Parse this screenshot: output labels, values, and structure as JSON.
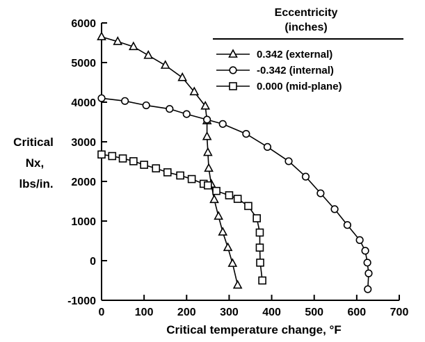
{
  "chart_data": {
    "type": "line",
    "xlabel": "Critical temperature change, °F",
    "ylabel_lines": [
      "Critical",
      "Nx,",
      "lbs/in."
    ],
    "xlim": [
      0,
      700
    ],
    "ylim": [
      -1000,
      6000
    ],
    "x_ticks": [
      0,
      100,
      200,
      300,
      400,
      500,
      600,
      700
    ],
    "y_ticks": [
      -1000,
      0,
      1000,
      2000,
      3000,
      4000,
      5000,
      6000
    ],
    "grid": false,
    "legend": {
      "title_line1": "Eccentricity",
      "title_line2": "(inches)",
      "position": "top-right"
    },
    "series": [
      {
        "name": "0.342 (external)",
        "marker": "triangle",
        "points": [
          [
            0,
            5650
          ],
          [
            38,
            5530
          ],
          [
            75,
            5400
          ],
          [
            110,
            5180
          ],
          [
            150,
            4930
          ],
          [
            190,
            4620
          ],
          [
            218,
            4260
          ],
          [
            244,
            3900
          ],
          [
            248,
            3530
          ],
          [
            248,
            3130
          ],
          [
            250,
            2730
          ],
          [
            252,
            2330
          ],
          [
            258,
            1930
          ],
          [
            265,
            1540
          ],
          [
            275,
            1120
          ],
          [
            285,
            720
          ],
          [
            297,
            330
          ],
          [
            308,
            -70
          ],
          [
            320,
            -620
          ]
        ]
      },
      {
        "name": "-0.342 (internal)",
        "marker": "circle",
        "points": [
          [
            0,
            4100
          ],
          [
            55,
            4030
          ],
          [
            105,
            3920
          ],
          [
            160,
            3830
          ],
          [
            200,
            3700
          ],
          [
            248,
            3560
          ],
          [
            285,
            3450
          ],
          [
            340,
            3200
          ],
          [
            390,
            2870
          ],
          [
            440,
            2510
          ],
          [
            480,
            2120
          ],
          [
            515,
            1700
          ],
          [
            548,
            1300
          ],
          [
            578,
            900
          ],
          [
            607,
            520
          ],
          [
            620,
            250
          ],
          [
            625,
            -50
          ],
          [
            628,
            -320
          ],
          [
            626,
            -720
          ]
        ]
      },
      {
        "name": "0.000 (mid-plane)",
        "marker": "square",
        "points": [
          [
            0,
            2680
          ],
          [
            25,
            2640
          ],
          [
            50,
            2580
          ],
          [
            75,
            2510
          ],
          [
            100,
            2420
          ],
          [
            128,
            2330
          ],
          [
            155,
            2230
          ],
          [
            185,
            2150
          ],
          [
            212,
            2060
          ],
          [
            240,
            1940
          ],
          [
            250,
            1900
          ],
          [
            270,
            1760
          ],
          [
            300,
            1650
          ],
          [
            320,
            1560
          ],
          [
            345,
            1380
          ],
          [
            365,
            1070
          ],
          [
            372,
            710
          ],
          [
            372,
            330
          ],
          [
            373,
            -50
          ],
          [
            378,
            -500
          ]
        ]
      }
    ]
  }
}
